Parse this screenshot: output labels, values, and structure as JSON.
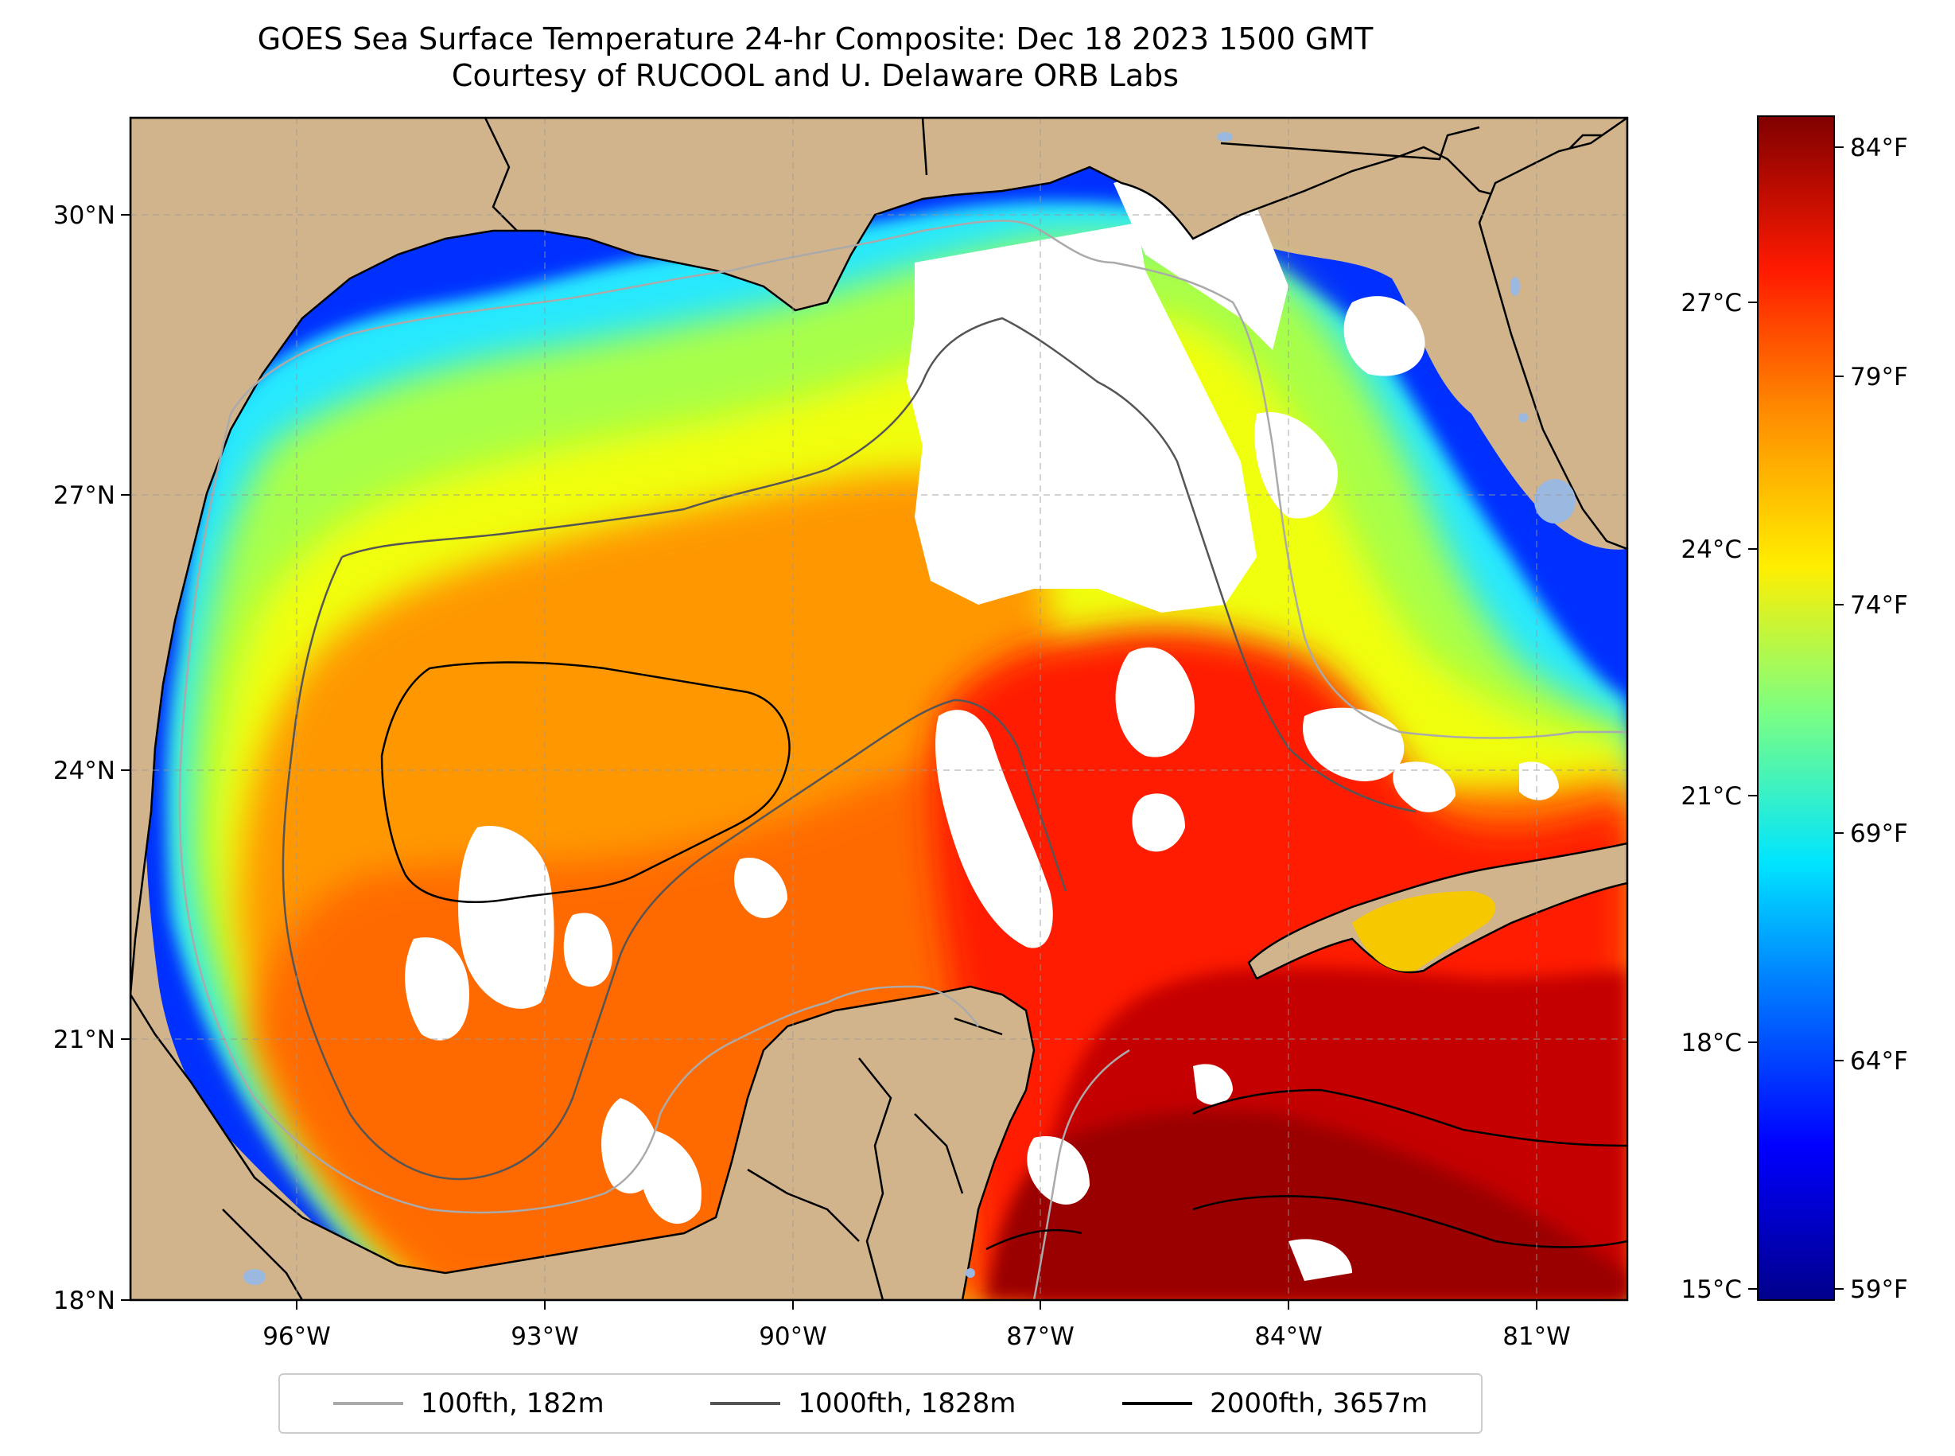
{
  "title_line1": "GOES Sea Surface Temperature 24-hr Composite: Dec 18 2023 1500 GMT",
  "title_line2": "Courtesy of RUCOOL and U. Delaware ORB Labs",
  "lat_ticks": [
    "30°N",
    "27°N",
    "24°N",
    "21°N",
    "18°N"
  ],
  "lon_ticks": [
    "96°W",
    "93°W",
    "90°W",
    "87°W",
    "84°W",
    "81°W"
  ],
  "colorbar_c_ticks": [
    "27°C",
    "24°C",
    "21°C",
    "18°C",
    "15°C"
  ],
  "colorbar_f_ticks": [
    "84°F",
    "79°F",
    "74°F",
    "69°F",
    "64°F",
    "59°F"
  ],
  "legend": [
    {
      "label": "100fth, 182m",
      "color": "#aaaaaa"
    },
    {
      "label": "1000fth, 1828m",
      "color": "#555555"
    },
    {
      "label": "2000fth, 3657m",
      "color": "#000000"
    }
  ],
  "colors": {
    "land": "#d2b48c",
    "lake": "#9ab8e0",
    "missing": "#ffffff"
  }
}
